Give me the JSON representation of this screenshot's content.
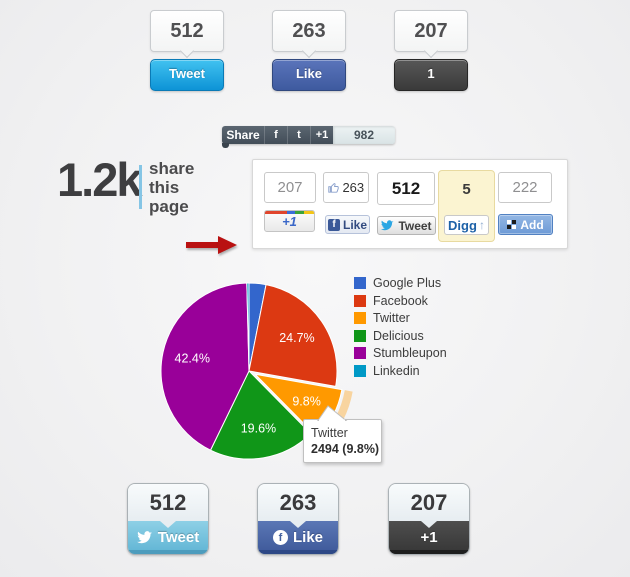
{
  "top_row": {
    "items": [
      {
        "count": "512",
        "label": "Tweet"
      },
      {
        "count": "263",
        "label": "Like"
      },
      {
        "count": "207",
        "label": "1"
      }
    ]
  },
  "share_bar": {
    "share_label": "Share",
    "facebook": "f",
    "twitter": "t",
    "plusone": "+1",
    "count": "982"
  },
  "share_page": {
    "total": "1.2k",
    "line1": "share",
    "line2": "this",
    "line3": "page"
  },
  "widget": {
    "google_plus": {
      "count": "207",
      "button": "+1"
    },
    "facebook": {
      "count": "263",
      "button": "Like"
    },
    "twitter": {
      "count": "512",
      "button": "Tweet"
    },
    "digg": {
      "count": "5",
      "button": "Digg",
      "arrow": "↑"
    },
    "addthis": {
      "count": "222",
      "button": "Add"
    }
  },
  "icons": {
    "facebook_f": "f"
  },
  "chart_data": {
    "type": "pie",
    "categories": [
      "Google Plus",
      "Facebook",
      "Twitter",
      "Delicious",
      "Stumbleupon",
      "Linkedin"
    ],
    "values_pct": [
      3.1,
      24.7,
      9.8,
      19.6,
      42.4,
      0.4
    ],
    "pct_labels_visible": [
      "",
      "24.7%",
      "9.8%",
      "19.6%",
      "42.4%",
      ""
    ],
    "colors": [
      "#3366cc",
      "#dc3912",
      "#ff9900",
      "#109618",
      "#990099",
      "#0099c6"
    ],
    "legend_position": "right",
    "exploded_slice": "Twitter",
    "selected_tooltip": {
      "label": "Twitter",
      "value": 2494,
      "pct": "9.8%"
    }
  },
  "tooltip": {
    "title": "Twitter",
    "value": "2494 (9.8%)"
  },
  "bottom_row": {
    "items": [
      {
        "count": "512",
        "label": "Tweet"
      },
      {
        "count": "263",
        "label": "Like"
      },
      {
        "count": "207",
        "label": "+1"
      }
    ]
  }
}
